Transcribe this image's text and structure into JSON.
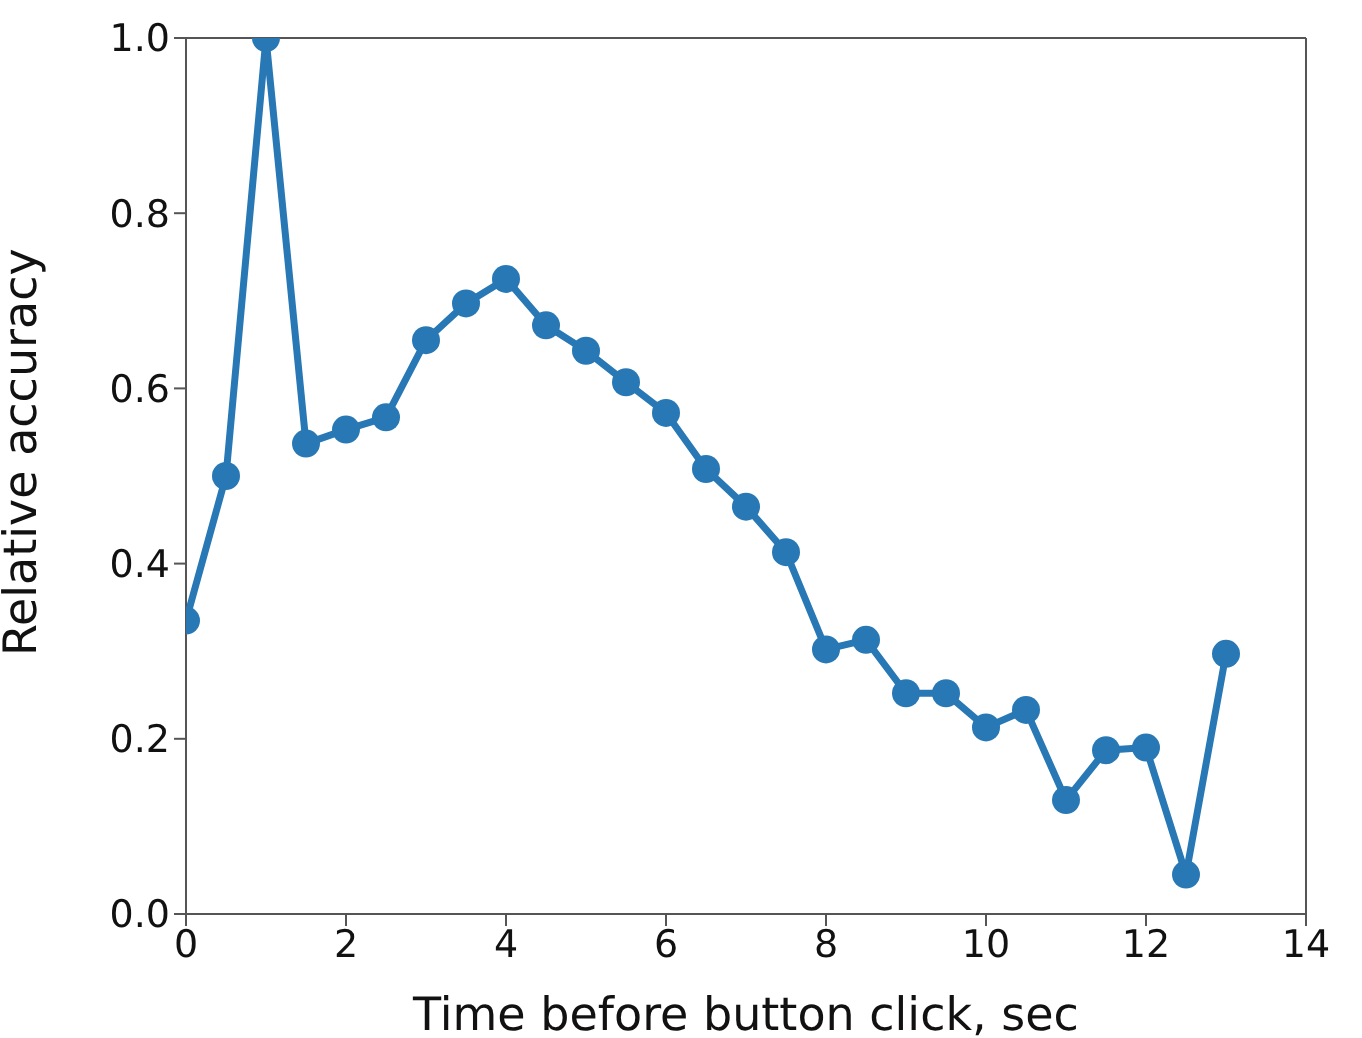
{
  "chart_data": {
    "type": "line",
    "xlabel": "Time before button click, sec",
    "ylabel": "Relative accuracy",
    "xlim": [
      0,
      14
    ],
    "xticks": [
      0,
      2,
      4,
      6,
      8,
      10,
      12,
      14
    ],
    "ylim": [
      0,
      1
    ],
    "yticks": [
      {
        "value": 0,
        "label": "0.0"
      },
      0.2,
      0.4,
      0.6,
      0.8,
      {
        "value": 1,
        "label": "1.0"
      }
    ],
    "grid": false,
    "marker": "circle",
    "line_style": "solid",
    "series": [
      {
        "color": "#2878b5",
        "x": [
          0,
          0.5,
          1,
          1.5,
          2,
          2.5,
          3,
          3.5,
          4,
          4.5,
          5,
          5.5,
          6,
          6.5,
          7,
          7.5,
          8,
          8.5,
          9,
          9.5,
          10,
          10.5,
          11,
          11.5,
          12,
          12.5,
          13
        ],
        "values": [
          0.335,
          0.5,
          1.0,
          0.537,
          0.553,
          0.567,
          0.655,
          0.697,
          0.725,
          0.672,
          0.643,
          0.607,
          0.572,
          0.508,
          0.465,
          0.413,
          0.302,
          0.313,
          0.252,
          0.252,
          0.213,
          0.233,
          0.13,
          0.187,
          0.19,
          0.045,
          0.297
        ]
      }
    ]
  }
}
